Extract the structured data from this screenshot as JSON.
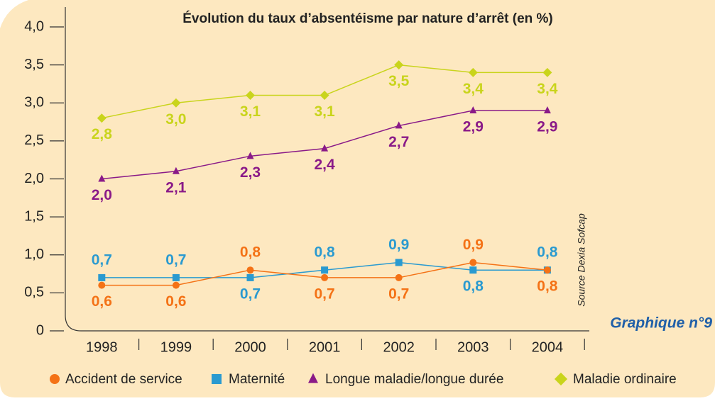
{
  "chart_data": {
    "type": "line",
    "title": "Évolution du taux d’absentéisme par nature d’arrêt (en %)",
    "caption": "Graphique n°9",
    "source": "Source Dexia Sofcap",
    "categories": [
      "1998",
      "1999",
      "2000",
      "2001",
      "2002",
      "2003",
      "2004"
    ],
    "series": [
      {
        "name": "Accident de service",
        "color": "#f47216",
        "marker": "circle",
        "values": [
          0.6,
          0.6,
          0.8,
          0.7,
          0.7,
          0.9,
          0.8
        ],
        "value_labels": [
          "0,6",
          "0,6",
          "0,8",
          "0,7",
          "0,7",
          "0,9",
          "0,8"
        ]
      },
      {
        "name": "Maternité",
        "color": "#2a9ad0",
        "marker": "square",
        "values": [
          0.7,
          0.7,
          0.7,
          0.8,
          0.9,
          0.8,
          0.8
        ],
        "value_labels": [
          "0,7",
          "0,7",
          "0,7",
          "0,8",
          "0,9",
          "0,8",
          "0,8"
        ]
      },
      {
        "name": "Longue maladie/longue durée",
        "color": "#8a1a88",
        "marker": "triangle",
        "values": [
          2.0,
          2.1,
          2.3,
          2.4,
          2.7,
          2.9,
          2.9
        ],
        "value_labels": [
          "2,0",
          "2,1",
          "2,3",
          "2,4",
          "2,7",
          "2,9",
          "2,9"
        ]
      },
      {
        "name": "Maladie ordinaire",
        "color": "#c9d41c",
        "marker": "diamond",
        "values": [
          2.8,
          3.0,
          3.1,
          3.1,
          3.5,
          3.4,
          3.4
        ],
        "value_labels": [
          "2,8",
          "3,0",
          "3,1",
          "3,1",
          "3,5",
          "3,4",
          "3,4"
        ]
      }
    ],
    "ylim": [
      0,
      4
    ],
    "yticks": [
      {
        "value": 0,
        "label": "0"
      },
      {
        "value": 0.5,
        "label": "0,5"
      },
      {
        "value": 1,
        "label": "1,0"
      },
      {
        "value": 1.5,
        "label": "1,5"
      },
      {
        "value": 2,
        "label": "2,0"
      },
      {
        "value": 2.5,
        "label": "2,5"
      },
      {
        "value": 3,
        "label": "3,0"
      },
      {
        "value": 3.5,
        "label": "3,5"
      },
      {
        "value": 4,
        "label": "4,0"
      }
    ],
    "legend": "bottom"
  }
}
